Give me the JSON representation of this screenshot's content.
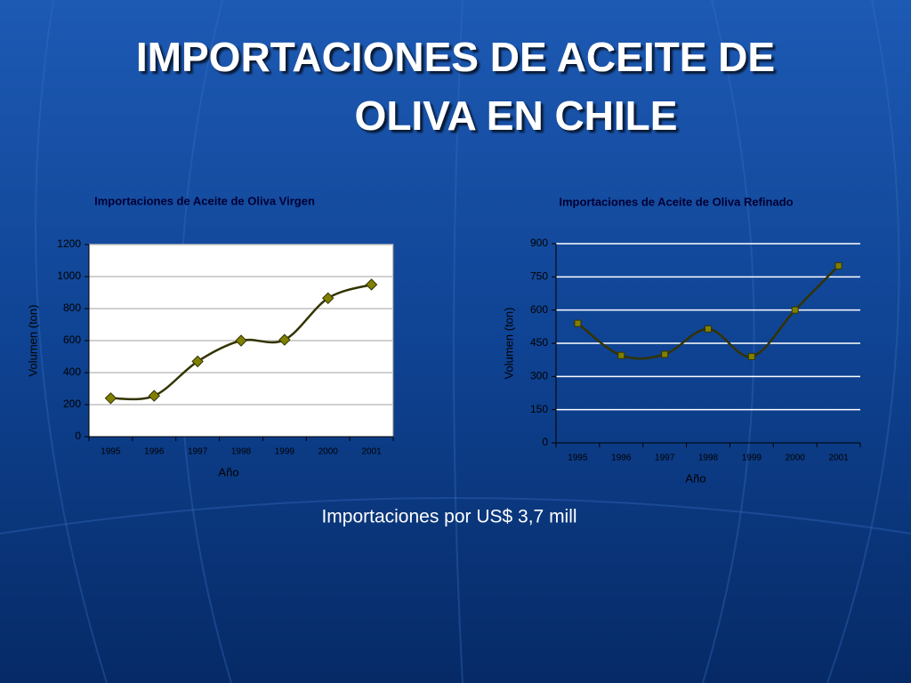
{
  "title": [
    "IMPORTACIONES DE ACEITE DE",
    "OLIVA EN CHILE"
  ],
  "note": "Importaciones por US$ 3,7 mill",
  "chart_data": [
    {
      "type": "line",
      "title": "Importaciones de Aceite de Oliva Virgen",
      "x_label": "Año",
      "y_label": "Volumen (ton)",
      "categories": [
        "1995",
        "1996",
        "1997",
        "1998",
        "1999",
        "2000",
        "2001"
      ],
      "values": [
        240,
        255,
        470,
        600,
        605,
        865,
        950
      ],
      "color": "#333300",
      "marker": "diamond",
      "marker_color": "#808000",
      "ylim": [
        0,
        1200
      ],
      "yticks": [
        0,
        200,
        400,
        600,
        800,
        1000,
        1200
      ],
      "grid": true,
      "grid_color": "#c0c0c0",
      "plot_background": "#ffffff"
    },
    {
      "type": "line",
      "title": "Importaciones de Aceite de Oliva Refinado",
      "x_label": "Año",
      "y_label": "Volumen (ton)",
      "categories": [
        "1995",
        "1996",
        "1997",
        "1998",
        "1999",
        "2000",
        "2001"
      ],
      "values": [
        540,
        395,
        400,
        515,
        390,
        600,
        800
      ],
      "color": "#333300",
      "marker": "square",
      "marker_color": "#808000",
      "ylim": [
        0,
        900
      ],
      "yticks": [
        0,
        150,
        300,
        450,
        600,
        750,
        900
      ],
      "grid": true,
      "grid_color": "#ffffff"
    }
  ]
}
